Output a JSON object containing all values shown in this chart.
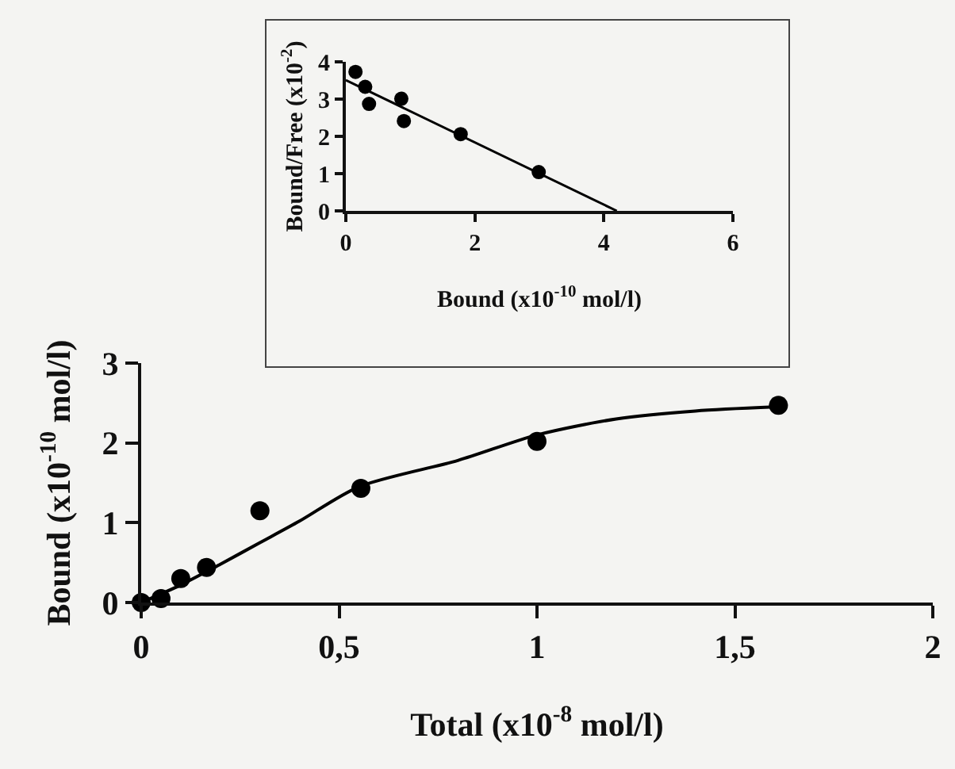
{
  "chart_data": [
    {
      "type": "scatter",
      "xlabel": "Bound (x10$^{-10}$ mol/l)",
      "ylabel": "Bound/Free (x10$^{-2}$)",
      "xlim": [
        0,
        6
      ],
      "ylim": [
        0,
        4
      ],
      "xticks": [
        0,
        2,
        4,
        6
      ],
      "yticks": [
        0,
        1,
        2,
        3,
        4
      ],
      "series": [
        {
          "marker": "circle",
          "color": "#000000",
          "x": [
            0.15,
            0.3,
            0.36,
            0.86,
            0.9,
            1.78,
            2.99
          ],
          "values": [
            3.73,
            3.33,
            2.87,
            3.01,
            2.41,
            2.06,
            1.04
          ]
        },
        {
          "type": "line",
          "color": "#000000",
          "x": [
            0,
            4.2
          ],
          "values": [
            3.51,
            0
          ]
        }
      ]
    },
    {
      "type": "scatter",
      "xlabel": "Total (x10$^{-8}$ mol/l)",
      "ylabel": "Bound (x10$^{-10}$ mol/l)",
      "xlim": [
        0,
        2
      ],
      "ylim": [
        0,
        3
      ],
      "xticks": [
        0,
        {
          "value": 0.5,
          "label": "0,5"
        },
        1,
        {
          "value": 1.5,
          "label": "1,5"
        },
        2
      ],
      "yticks": [
        0,
        1,
        2,
        3
      ],
      "series": [
        {
          "marker": "circle",
          "color": "#000000",
          "x": [
            0,
            0.05,
            0.1,
            0.165,
            0.3,
            0.555,
            1.0,
            1.61
          ],
          "values": [
            0,
            0.05,
            0.3,
            0.44,
            1.15,
            1.43,
            2.02,
            2.47
          ]
        },
        {
          "type": "line",
          "color": "#000000",
          "x": [
            0,
            0.1,
            0.2,
            0.3,
            0.4,
            0.55,
            0.8,
            1.0,
            1.2,
            1.4,
            1.6
          ],
          "values": [
            0,
            0.22,
            0.48,
            0.75,
            1.02,
            1.45,
            1.78,
            2.1,
            2.3,
            2.4,
            2.45
          ]
        }
      ]
    }
  ]
}
